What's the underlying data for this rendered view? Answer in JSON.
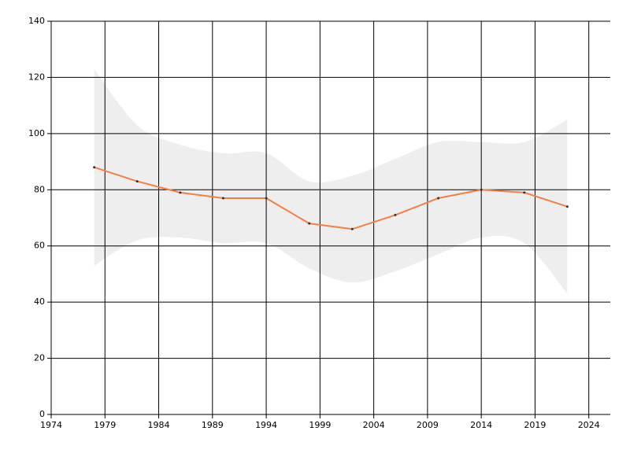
{
  "chart_data": {
    "type": "line",
    "x": [
      1978,
      1982,
      1986,
      1990,
      1994,
      1998,
      2002,
      2006,
      2010,
      2014,
      2018,
      2022
    ],
    "series": [
      {
        "color": "#f47f3f",
        "values": [
          88,
          83,
          79,
          77,
          77,
          68,
          66,
          71,
          77,
          80,
          79,
          74
        ]
      }
    ],
    "band": {
      "color": "#eeeeee",
      "upper": [
        123,
        103,
        96,
        93,
        93,
        83,
        85,
        91,
        97,
        97,
        97,
        105
      ],
      "lower": [
        53,
        62,
        63,
        61,
        61,
        52,
        47,
        51,
        57,
        63,
        61,
        43
      ]
    },
    "xlim": [
      1974,
      2026
    ],
    "xticks": [
      1974,
      1979,
      1984,
      1989,
      1994,
      1999,
      2004,
      2009,
      2014,
      2019,
      2024
    ],
    "ylim": [
      0,
      140
    ],
    "yticks": [
      0,
      20,
      40,
      60,
      80,
      100,
      120,
      140
    ],
    "grid": true
  }
}
